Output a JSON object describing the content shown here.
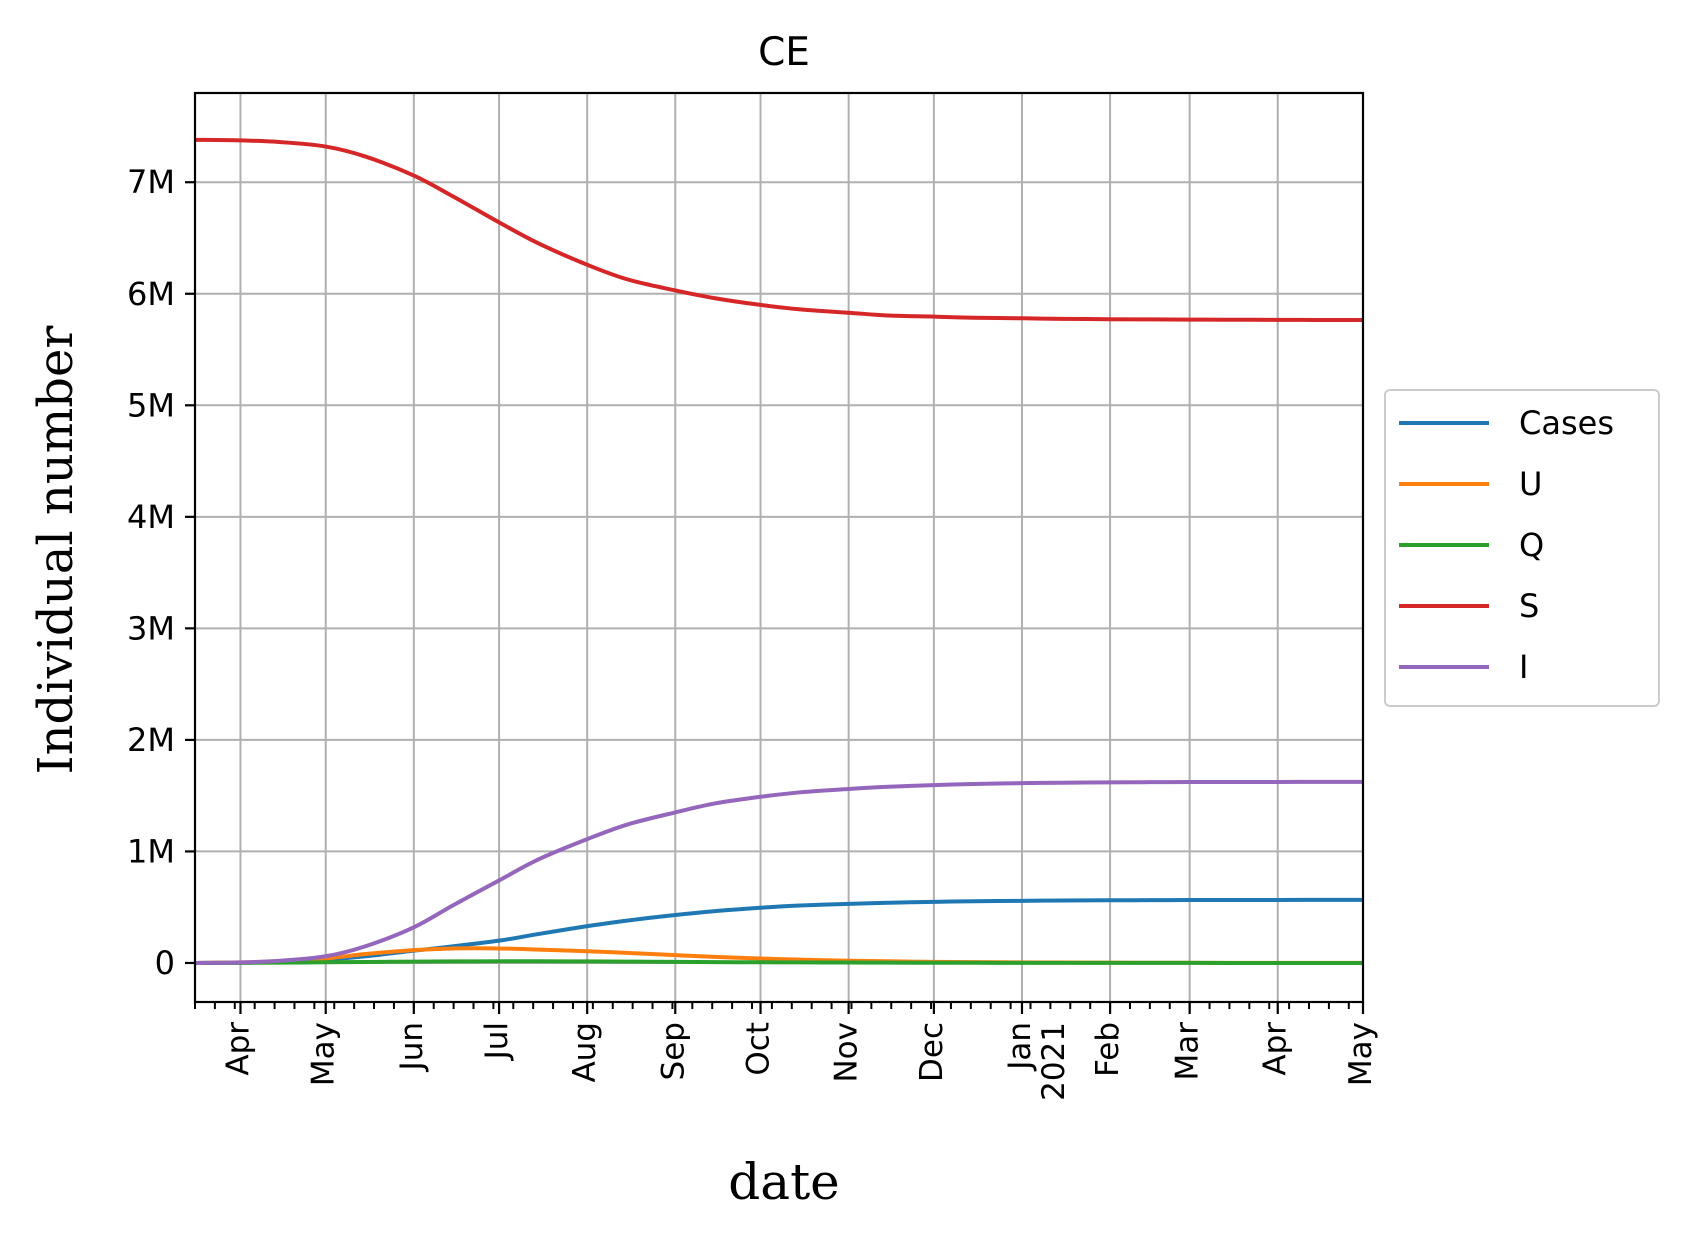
{
  "chart_data": {
    "type": "line",
    "title": "CE",
    "xlabel": "date",
    "ylabel": "Individual number",
    "x_start": "2020-03-16",
    "x_end": "2021-05-01",
    "xlim": [
      "2020-03-16",
      "2021-05-01"
    ],
    "ylim": [
      -350000,
      7800000
    ],
    "x_ticks": [
      {
        "date": "2020-04-01",
        "label": "Apr"
      },
      {
        "date": "2020-05-01",
        "label": "May"
      },
      {
        "date": "2020-06-01",
        "label": "Jun"
      },
      {
        "date": "2020-07-01",
        "label": "Jul"
      },
      {
        "date": "2020-08-01",
        "label": "Aug"
      },
      {
        "date": "2020-09-01",
        "label": "Sep"
      },
      {
        "date": "2020-10-01",
        "label": "Oct"
      },
      {
        "date": "2020-11-01",
        "label": "Nov"
      },
      {
        "date": "2020-12-01",
        "label": "Dec"
      },
      {
        "date": "2021-01-01",
        "label": "Jan\n2021"
      },
      {
        "date": "2021-02-01",
        "label": "Feb"
      },
      {
        "date": "2021-03-01",
        "label": "Mar"
      },
      {
        "date": "2021-04-01",
        "label": "Apr"
      },
      {
        "date": "2021-05-01",
        "label": "May"
      }
    ],
    "y_ticks": [
      {
        "value": 0,
        "label": "0"
      },
      {
        "value": 1000000,
        "label": "1M"
      },
      {
        "value": 2000000,
        "label": "2M"
      },
      {
        "value": 3000000,
        "label": "3M"
      },
      {
        "value": 4000000,
        "label": "4M"
      },
      {
        "value": 5000000,
        "label": "5M"
      },
      {
        "value": 6000000,
        "label": "6M"
      },
      {
        "value": 7000000,
        "label": "7M"
      }
    ],
    "grid": true,
    "legend": {
      "position": "center-right-outside"
    },
    "dates": [
      "2020-03-16",
      "2020-04-01",
      "2020-04-15",
      "2020-05-01",
      "2020-05-15",
      "2020-06-01",
      "2020-06-15",
      "2020-07-01",
      "2020-07-15",
      "2020-08-01",
      "2020-08-15",
      "2020-09-01",
      "2020-09-15",
      "2020-10-01",
      "2020-10-15",
      "2020-11-01",
      "2020-11-15",
      "2020-12-01",
      "2020-12-15",
      "2021-01-01",
      "2021-01-15",
      "2021-02-01",
      "2021-02-15",
      "2021-03-01",
      "2021-03-15",
      "2021-04-01",
      "2021-04-15",
      "2021-05-01"
    ],
    "series": [
      {
        "name": "Cases",
        "color": "#1f77b4",
        "values": [
          0,
          2000,
          10000,
          30000,
          60000,
          110000,
          150000,
          200000,
          260000,
          330000,
          380000,
          430000,
          465000,
          495000,
          515000,
          530000,
          540000,
          548000,
          553000,
          557000,
          560000,
          562000,
          563000,
          564000,
          565000,
          565000,
          566000,
          566000
        ]
      },
      {
        "name": "U",
        "color": "#ff7f0e",
        "values": [
          0,
          5000,
          15000,
          40000,
          80000,
          115000,
          130000,
          130000,
          120000,
          105000,
          90000,
          70000,
          55000,
          40000,
          30000,
          20000,
          15000,
          10000,
          7000,
          5000,
          4000,
          3000,
          2000,
          1500,
          1000,
          800,
          600,
          500
        ]
      },
      {
        "name": "Q",
        "color": "#2ca02c",
        "values": [
          0,
          1000,
          3000,
          6000,
          9000,
          12000,
          14000,
          15000,
          15000,
          14000,
          12000,
          10000,
          8000,
          6000,
          5000,
          4000,
          3000,
          2000,
          1500,
          1000,
          800,
          600,
          400,
          300,
          200,
          150,
          100,
          100
        ]
      },
      {
        "name": "S",
        "color": "#d62728",
        "values": [
          7380000,
          7375000,
          7360000,
          7320000,
          7230000,
          7060000,
          6870000,
          6640000,
          6450000,
          6260000,
          6130000,
          6030000,
          5960000,
          5900000,
          5860000,
          5830000,
          5805000,
          5795000,
          5785000,
          5780000,
          5775000,
          5772000,
          5770000,
          5768000,
          5767000,
          5766000,
          5765000,
          5765000
        ]
      },
      {
        "name": "I",
        "color": "#9467bd",
        "values": [
          0,
          5000,
          20000,
          60000,
          150000,
          320000,
          520000,
          740000,
          930000,
          1110000,
          1240000,
          1350000,
          1430000,
          1490000,
          1530000,
          1560000,
          1580000,
          1595000,
          1605000,
          1612000,
          1616000,
          1619000,
          1621000,
          1622000,
          1623000,
          1623000,
          1624000,
          1624000
        ]
      }
    ]
  }
}
